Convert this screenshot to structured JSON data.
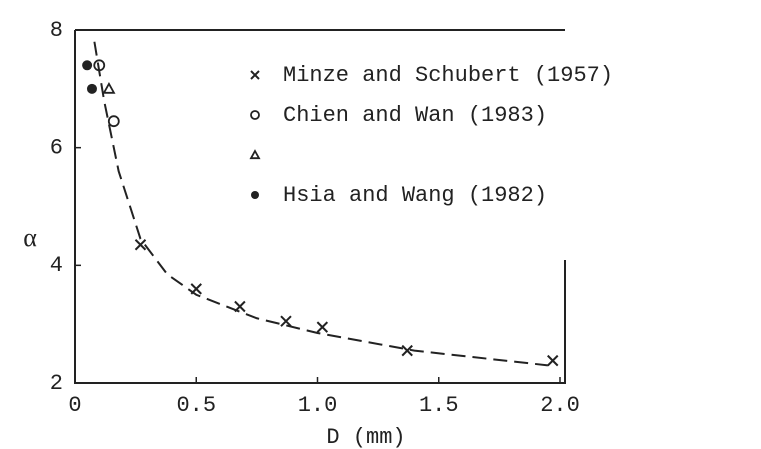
{
  "chart_data": {
    "type": "scatter",
    "xlabel": "D (mm)",
    "ylabel": "α",
    "xlim": [
      0,
      2
    ],
    "ylim": [
      2,
      8
    ],
    "xticks": [
      0,
      0.5,
      {
        "value": 1,
        "label": "1.0"
      },
      1.5,
      {
        "value": 2,
        "label": "2.0"
      }
    ],
    "yticks": [
      2,
      4,
      6,
      8
    ],
    "series": [
      {
        "name": "Minze and Schubert (1957)",
        "marker": "x",
        "color": "#222",
        "x": [
          0.27,
          0.5,
          0.68,
          0.87,
          1.02,
          1.37,
          1.97
        ],
        "values": [
          4.35,
          3.6,
          3.3,
          3.05,
          2.95,
          2.55,
          2.38
        ]
      },
      {
        "name": "Chien and Wan (1983)",
        "marker": "o",
        "color": "#222",
        "x": [
          0.1,
          0.16
        ],
        "values": [
          7.4,
          6.45
        ]
      },
      {
        "marker": "^",
        "color": "#222",
        "x": [
          0.14
        ],
        "values": [
          7.0
        ]
      },
      {
        "name": "Hsia and Wang (1982)",
        "marker": "filled",
        "color": "#222",
        "x": [
          0.05,
          0.07
        ],
        "values": [
          7.4,
          7.0
        ]
      }
    ],
    "curve": {
      "style": "dashed",
      "color": "#222",
      "x": [
        0.08,
        0.12,
        0.18,
        0.27,
        0.38,
        0.5,
        0.75,
        1.0,
        1.4,
        1.95
      ],
      "values": [
        7.8,
        6.8,
        5.6,
        4.45,
        3.85,
        3.5,
        3.1,
        2.85,
        2.55,
        2.3
      ]
    }
  }
}
